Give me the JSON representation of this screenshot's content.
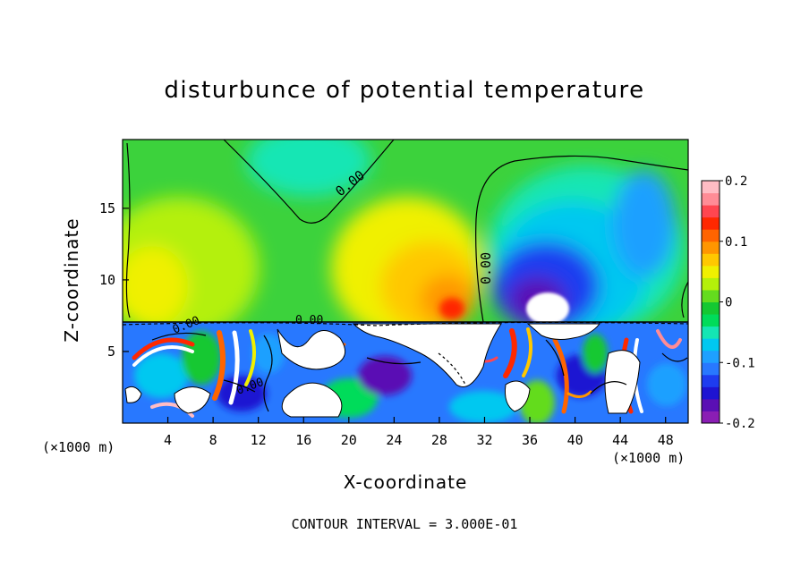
{
  "chart_data": {
    "type": "heatmap",
    "title": "disturbunce of potential temperature",
    "xlabel": "X-coordinate",
    "ylabel": "Z-coordinate",
    "x_unit": "(×1000 m)",
    "x_ticks": [
      "4",
      "8",
      "12",
      "16",
      "20",
      "24",
      "28",
      "32",
      "36",
      "40",
      "44",
      "48"
    ],
    "y_ticks": [
      "5",
      "10",
      "15"
    ],
    "xlim": [
      0,
      50
    ],
    "ylim": [
      0,
      19.8
    ],
    "colorbar": {
      "range": [
        -0.2,
        0.2
      ],
      "tick_labels": [
        "0.2",
        "0.1",
        "0",
        "-0.1",
        "-0.2"
      ],
      "colors": [
        "#8a1eb4",
        "#5a0fb4",
        "#1e14d2",
        "#1e3cf0",
        "#2878ff",
        "#1ea0ff",
        "#00c8f0",
        "#14e6b4",
        "#00dc5a",
        "#14c832",
        "#64dc1e",
        "#b4f00a",
        "#f0f000",
        "#ffc800",
        "#ff9600",
        "#ff6400",
        "#ff2800",
        "#ff4650",
        "#ff8c96",
        "#ffbcc4"
      ]
    },
    "contour_labels": [
      "0.00",
      "0.00",
      "0.00",
      "0.00",
      "0.00"
    ],
    "contour_interval": "CONTOUR INTERVAL = 3.000E-01",
    "grid": false
  }
}
